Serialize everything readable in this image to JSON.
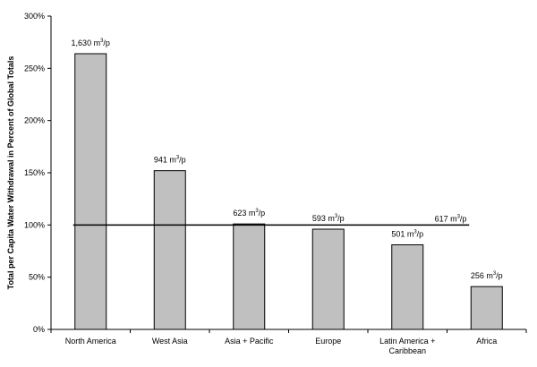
{
  "chart_data": {
    "type": "bar",
    "title": "",
    "xlabel": "",
    "ylabel": "Total per Capita Water Withdrawal in Percent of Global Totals",
    "ylim": [
      0,
      300
    ],
    "y_ticks": [
      0,
      50,
      100,
      150,
      200,
      250,
      300
    ],
    "y_tick_labels": [
      "0%",
      "50%",
      "100%",
      "150%",
      "200%",
      "250%",
      "300%"
    ],
    "grid": false,
    "categories": [
      [
        "North America"
      ],
      [
        "West Asia"
      ],
      [
        "Asia + Pacific"
      ],
      [
        "Europe"
      ],
      [
        "Latin America +",
        "Caribbean"
      ],
      [
        "Africa"
      ]
    ],
    "values": [
      264,
      152,
      101,
      96,
      81,
      41
    ],
    "data_labels": [
      {
        "num": "1,630 m",
        "sup": "3",
        "unit": "/p"
      },
      {
        "num": "941 m",
        "sup": "3",
        "unit": "/p"
      },
      {
        "num": "623 m",
        "sup": "3",
        "unit": "/p"
      },
      {
        "num": "593 m",
        "sup": "3",
        "unit": "/p"
      },
      {
        "num": "501 m",
        "sup": "3",
        "unit": "/p"
      },
      {
        "num": "256 m",
        "sup": "3",
        "unit": "/p"
      }
    ],
    "reference_line": {
      "value": 100,
      "label": {
        "num": "617 m",
        "sup": "3",
        "unit": "/p"
      }
    },
    "colors": {
      "bar_fill": "#c0c0c0",
      "bar_stroke": "#000000",
      "line": "#000000"
    }
  }
}
